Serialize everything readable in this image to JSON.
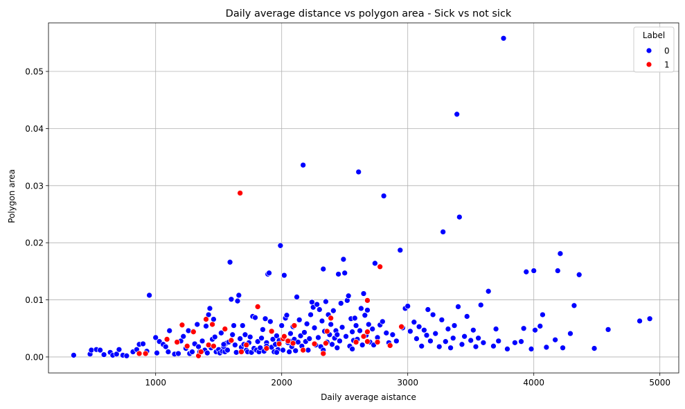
{
  "chart_data": {
    "type": "scatter",
    "title": "Daily average distance vs polygon area - Sick vs not sick",
    "xlabel": "Daily average aistance",
    "ylabel": "Polygon area",
    "xlim": [
      150,
      5150
    ],
    "ylim": [
      -0.0028,
      0.0585
    ],
    "xticks": [
      1000,
      2000,
      3000,
      4000,
      5000
    ],
    "xtick_labels": [
      "1000",
      "2000",
      "3000",
      "4000",
      "5000"
    ],
    "yticks": [
      0.0,
      0.01,
      0.02,
      0.03,
      0.04,
      0.05
    ],
    "ytick_labels": [
      "0.00",
      "0.01",
      "0.02",
      "0.03",
      "0.04",
      "0.05"
    ],
    "grid": true,
    "legend": {
      "title": "Label",
      "placement": "top-right",
      "entries": [
        {
          "label": "0",
          "color": "#0000ff"
        },
        {
          "label": "1",
          "color": "#ff0000"
        }
      ]
    },
    "series": [
      {
        "name": "0",
        "color": "#0000ff",
        "points": [
          [
            350,
            0.0003
          ],
          [
            480,
            0.0005
          ],
          [
            490,
            0.0012
          ],
          [
            530,
            0.0013
          ],
          [
            560,
            0.0012
          ],
          [
            590,
            0.0004
          ],
          [
            640,
            0.0008
          ],
          [
            660,
            0.0003
          ],
          [
            690,
            0.0005
          ],
          [
            710,
            0.0013
          ],
          [
            740,
            0.0003
          ],
          [
            770,
            0.0002
          ],
          [
            820,
            0.0009
          ],
          [
            850,
            0.0013
          ],
          [
            870,
            0.0022
          ],
          [
            900,
            0.0023
          ],
          [
            930,
            0.001
          ],
          [
            950,
            0.0108
          ],
          [
            1000,
            0.0034
          ],
          [
            1010,
            0.0007
          ],
          [
            1030,
            0.0027
          ],
          [
            1060,
            0.0022
          ],
          [
            1080,
            0.0018
          ],
          [
            1100,
            0.0009
          ],
          [
            1110,
            0.0046
          ],
          [
            1150,
            0.0005
          ],
          [
            1180,
            0.0006
          ],
          [
            1200,
            0.0028
          ],
          [
            1220,
            0.0036
          ],
          [
            1240,
            0.0015
          ],
          [
            1260,
            0.0046
          ],
          [
            1270,
            0.0006
          ],
          [
            1290,
            0.0009
          ],
          [
            1300,
            0.0045
          ],
          [
            1310,
            0.0023
          ],
          [
            1330,
            0.0057
          ],
          [
            1340,
            0.0018
          ],
          [
            1350,
            0.0009
          ],
          [
            1370,
            0.0028
          ],
          [
            1390,
            0.0012
          ],
          [
            1400,
            0.0054
          ],
          [
            1410,
            0.0007
          ],
          [
            1420,
            0.0074
          ],
          [
            1430,
            0.0085
          ],
          [
            1440,
            0.0016
          ],
          [
            1450,
            0.0031
          ],
          [
            1460,
            0.0066
          ],
          [
            1470,
            0.0035
          ],
          [
            1480,
            0.0009
          ],
          [
            1500,
            0.0013
          ],
          [
            1510,
            0.0007
          ],
          [
            1520,
            0.0042
          ],
          [
            1530,
            0.001
          ],
          [
            1540,
            0.0018
          ],
          [
            1550,
            0.0009
          ],
          [
            1560,
            0.0024
          ],
          [
            1570,
            0.0012
          ],
          [
            1580,
            0.0026
          ],
          [
            1590,
            0.0166
          ],
          [
            1600,
            0.0101
          ],
          [
            1610,
            0.0039
          ],
          [
            1620,
            0.0055
          ],
          [
            1630,
            0.0021
          ],
          [
            1640,
            0.0008
          ],
          [
            1650,
            0.0098
          ],
          [
            1660,
            0.0108
          ],
          [
            1670,
            0.0032
          ],
          [
            1680,
            0.0017
          ],
          [
            1690,
            0.0055
          ],
          [
            1700,
            0.0022
          ],
          [
            1710,
            0.0039
          ],
          [
            1720,
            0.0012
          ],
          [
            1730,
            0.0009
          ],
          [
            1740,
            0.0025
          ],
          [
            1750,
            0.0035
          ],
          [
            1760,
            0.0008
          ],
          [
            1770,
            0.0071
          ],
          [
            1780,
            0.0015
          ],
          [
            1790,
            0.0069
          ],
          [
            1800,
            0.0012
          ],
          [
            1810,
            0.0027
          ],
          [
            1820,
            0.0009
          ],
          [
            1830,
            0.0016
          ],
          [
            1840,
            0.0033
          ],
          [
            1850,
            0.0048
          ],
          [
            1860,
            0.001
          ],
          [
            1870,
            0.0067
          ],
          [
            1880,
            0.0025
          ],
          [
            1890,
            0.0145
          ],
          [
            1900,
            0.0147
          ],
          [
            1910,
            0.0062
          ],
          [
            1920,
            0.0017
          ],
          [
            1930,
            0.0031
          ],
          [
            1940,
            0.0009
          ],
          [
            1950,
            0.0022
          ],
          [
            1960,
            0.0037
          ],
          [
            1970,
            0.0013
          ],
          [
            1980,
            0.0029
          ],
          [
            1990,
            0.0195
          ],
          [
            2000,
            0.0055
          ],
          [
            2010,
            0.0012
          ],
          [
            2020,
            0.0143
          ],
          [
            2030,
            0.0068
          ],
          [
            2040,
            0.0073
          ],
          [
            2050,
            0.0025
          ],
          [
            2060,
            0.0009
          ],
          [
            2070,
            0.0041
          ],
          [
            2080,
            0.0018
          ],
          [
            2090,
            0.0053
          ],
          [
            2100,
            0.0031
          ],
          [
            2110,
            0.0011
          ],
          [
            2120,
            0.0105
          ],
          [
            2130,
            0.0026
          ],
          [
            2140,
            0.0065
          ],
          [
            2150,
            0.0037
          ],
          [
            2160,
            0.0019
          ],
          [
            2170,
            0.0336
          ],
          [
            2180,
            0.0043
          ],
          [
            2190,
            0.0027
          ],
          [
            2200,
            0.0058
          ],
          [
            2210,
            0.0012
          ],
          [
            2220,
            0.0032
          ],
          [
            2230,
            0.0074
          ],
          [
            2240,
            0.0096
          ],
          [
            2250,
            0.0087
          ],
          [
            2260,
            0.0051
          ],
          [
            2270,
            0.0021
          ],
          [
            2280,
            0.0092
          ],
          [
            2290,
            0.0034
          ],
          [
            2300,
            0.0083
          ],
          [
            2310,
            0.0018
          ],
          [
            2320,
            0.0063
          ],
          [
            2330,
            0.0154
          ],
          [
            2340,
            0.0045
          ],
          [
            2350,
            0.0097
          ],
          [
            2360,
            0.0026
          ],
          [
            2370,
            0.0074
          ],
          [
            2380,
            0.0039
          ],
          [
            2390,
            0.0057
          ],
          [
            2400,
            0.0022
          ],
          [
            2410,
            0.0081
          ],
          [
            2420,
            0.0033
          ],
          [
            2430,
            0.0046
          ],
          [
            2440,
            0.0016
          ],
          [
            2450,
            0.0145
          ],
          [
            2460,
            0.0028
          ],
          [
            2470,
            0.0094
          ],
          [
            2480,
            0.0052
          ],
          [
            2490,
            0.0171
          ],
          [
            2500,
            0.0147
          ],
          [
            2510,
            0.0036
          ],
          [
            2520,
            0.0099
          ],
          [
            2530,
            0.0107
          ],
          [
            2540,
            0.0019
          ],
          [
            2550,
            0.0067
          ],
          [
            2560,
            0.0044
          ],
          [
            2570,
            0.0029
          ],
          [
            2580,
            0.0068
          ],
          [
            2590,
            0.0055
          ],
          [
            2600,
            0.0031
          ],
          [
            2610,
            0.0324
          ],
          [
            2620,
            0.0046
          ],
          [
            2630,
            0.0085
          ],
          [
            2640,
            0.0021
          ],
          [
            2650,
            0.0111
          ],
          [
            2660,
            0.0073
          ],
          [
            2670,
            0.0038
          ],
          [
            2680,
            0.0082
          ],
          [
            2690,
            0.0057
          ],
          [
            2700,
            0.0026
          ],
          [
            2720,
            0.0049
          ],
          [
            2740,
            0.0164
          ],
          [
            2760,
            0.0034
          ],
          [
            2780,
            0.0056
          ],
          [
            2800,
            0.0062
          ],
          [
            2810,
            0.0282
          ],
          [
            2830,
            0.0042
          ],
          [
            2850,
            0.0025
          ],
          [
            2880,
            0.0039
          ],
          [
            2910,
            0.0028
          ],
          [
            2940,
            0.0187
          ],
          [
            2960,
            0.0051
          ],
          [
            2980,
            0.0085
          ],
          [
            3000,
            0.0089
          ],
          [
            3020,
            0.0045
          ],
          [
            3050,
            0.0061
          ],
          [
            3070,
            0.0032
          ],
          [
            3090,
            0.0053
          ],
          [
            3110,
            0.0019
          ],
          [
            3130,
            0.0047
          ],
          [
            3150,
            0.0038
          ],
          [
            3160,
            0.0083
          ],
          [
            3180,
            0.0028
          ],
          [
            3200,
            0.0074
          ],
          [
            3220,
            0.0041
          ],
          [
            3250,
            0.0018
          ],
          [
            3270,
            0.0065
          ],
          [
            3280,
            0.0219
          ],
          [
            3300,
            0.0027
          ],
          [
            3320,
            0.0049
          ],
          [
            3340,
            0.0016
          ],
          [
            3360,
            0.0033
          ],
          [
            3370,
            0.0055
          ],
          [
            3390,
            0.0425
          ],
          [
            3400,
            0.0088
          ],
          [
            3410,
            0.0245
          ],
          [
            3430,
            0.0022
          ],
          [
            3450,
            0.0036
          ],
          [
            3470,
            0.0071
          ],
          [
            3500,
            0.0029
          ],
          [
            3520,
            0.0047
          ],
          [
            3540,
            0.0018
          ],
          [
            3560,
            0.0033
          ],
          [
            3580,
            0.0091
          ],
          [
            3600,
            0.0025
          ],
          [
            3640,
            0.0115
          ],
          [
            3680,
            0.0019
          ],
          [
            3700,
            0.0049
          ],
          [
            3720,
            0.0028
          ],
          [
            3760,
            0.0558
          ],
          [
            3790,
            0.0014
          ],
          [
            3850,
            0.0025
          ],
          [
            3900,
            0.0027
          ],
          [
            3920,
            0.005
          ],
          [
            3940,
            0.0149
          ],
          [
            3980,
            0.0014
          ],
          [
            4000,
            0.0151
          ],
          [
            4010,
            0.0047
          ],
          [
            4050,
            0.0054
          ],
          [
            4070,
            0.0074
          ],
          [
            4100,
            0.0017
          ],
          [
            4170,
            0.003
          ],
          [
            4190,
            0.0151
          ],
          [
            4210,
            0.0181
          ],
          [
            4230,
            0.0016
          ],
          [
            4290,
            0.0041
          ],
          [
            4320,
            0.009
          ],
          [
            4360,
            0.0144
          ],
          [
            4480,
            0.0015
          ],
          [
            4590,
            0.0048
          ],
          [
            4840,
            0.0063
          ],
          [
            4920,
            0.0067
          ],
          [
            1540,
            0.0022
          ],
          [
            1880,
            0.0019
          ],
          [
            1960,
            0.0008
          ],
          [
            2060,
            0.0028
          ],
          [
            2330,
            0.0012
          ],
          [
            2440,
            0.0039
          ],
          [
            2560,
            0.0014
          ],
          [
            2730,
            0.0021
          ]
        ]
      },
      {
        "name": "1",
        "color": "#ff0000",
        "points": [
          [
            870,
            0.0006
          ],
          [
            920,
            0.0006
          ],
          [
            1090,
            0.0031
          ],
          [
            1170,
            0.0026
          ],
          [
            1210,
            0.0056
          ],
          [
            1250,
            0.0019
          ],
          [
            1300,
            0.0044
          ],
          [
            1340,
            0.0002
          ],
          [
            1360,
            0.0009
          ],
          [
            1400,
            0.0066
          ],
          [
            1420,
            0.0021
          ],
          [
            1450,
            0.0057
          ],
          [
            1460,
            0.0019
          ],
          [
            1550,
            0.0049
          ],
          [
            1600,
            0.0029
          ],
          [
            1670,
            0.0287
          ],
          [
            1680,
            0.0009
          ],
          [
            1720,
            0.0021
          ],
          [
            1810,
            0.0088
          ],
          [
            1880,
            0.0015
          ],
          [
            1920,
            0.0045
          ],
          [
            1980,
            0.0023
          ],
          [
            2010,
            0.0032
          ],
          [
            2020,
            0.0036
          ],
          [
            2050,
            0.0028
          ],
          [
            2090,
            0.0024
          ],
          [
            2100,
            0.0055
          ],
          [
            2170,
            0.0012
          ],
          [
            2260,
            0.0023
          ],
          [
            2330,
            0.0006
          ],
          [
            2350,
            0.0024
          ],
          [
            2360,
            0.0045
          ],
          [
            2390,
            0.0068
          ],
          [
            2590,
            0.0026
          ],
          [
            2650,
            0.0036
          ],
          [
            2680,
            0.0027
          ],
          [
            2680,
            0.0099
          ],
          [
            2760,
            0.0026
          ],
          [
            2780,
            0.0158
          ],
          [
            2860,
            0.002
          ],
          [
            2950,
            0.0053
          ],
          [
            2680,
            0.0044
          ]
        ]
      }
    ]
  }
}
